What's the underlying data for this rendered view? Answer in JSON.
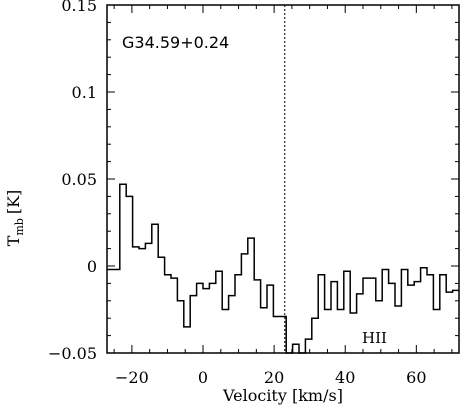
{
  "chart_data": {
    "type": "line",
    "step": true,
    "title": "",
    "xlabel": "Velocity [km/s]",
    "ylabel_main": "T",
    "ylabel_sub": "mb",
    "ylabel_unit": "[K]",
    "xlim": [
      -27,
      72
    ],
    "ylim": [
      -0.05,
      0.15
    ],
    "xticks": [
      -20,
      0,
      20,
      40,
      60
    ],
    "xtick_labels": [
      "−20",
      "0",
      "20",
      "40",
      "60"
    ],
    "yticks": [
      -0.05,
      0,
      0.05,
      0.1,
      0.15
    ],
    "ytick_labels": [
      "−0.05",
      "0",
      "0.05",
      "0.1",
      "0.15"
    ],
    "source_label": "G34.59+0.24",
    "annotation": "HII",
    "vline_x": 23,
    "grid": false,
    "series": [
      {
        "x": [
          -27,
          -25.2,
          -23.4,
          -21.6,
          -19.8,
          -18,
          -16.2,
          -14.4,
          -12.6,
          -10.8,
          -9,
          -7.2,
          -5.4,
          -3.6,
          -1.8,
          0,
          1.8,
          3.6,
          5.4,
          7.2,
          9,
          10.8,
          12.6,
          14.4,
          16.2,
          18,
          19.8,
          21.6,
          23.4,
          25.2,
          27,
          28.8,
          30.6,
          32.4,
          34.2,
          36,
          37.8,
          39.6,
          41.4,
          43.2,
          45,
          46.8,
          48.6,
          50.4,
          52.2,
          54,
          55.8,
          57.6,
          59.4,
          61.2,
          63,
          64.8,
          66.6,
          68.4,
          70.2
        ],
        "values": [
          -0.002,
          -0.002,
          0.047,
          0.04,
          0.011,
          0.01,
          0.013,
          0.024,
          0.005,
          -0.005,
          -0.007,
          -0.02,
          -0.035,
          -0.017,
          -0.01,
          -0.013,
          -0.01,
          -0.003,
          -0.025,
          -0.017,
          -0.005,
          0.007,
          0.016,
          -0.008,
          -0.024,
          -0.011,
          -0.029,
          -0.029,
          -0.05,
          -0.045,
          -0.055,
          -0.042,
          -0.03,
          -0.005,
          -0.025,
          -0.009,
          -0.025,
          -0.003,
          -0.027,
          -0.016,
          -0.007,
          -0.007,
          -0.02,
          -0.002,
          -0.01,
          -0.023,
          -0.002,
          -0.011,
          -0.009,
          -0.001,
          -0.005,
          -0.025,
          -0.005,
          -0.015,
          -0.014
        ]
      }
    ]
  }
}
